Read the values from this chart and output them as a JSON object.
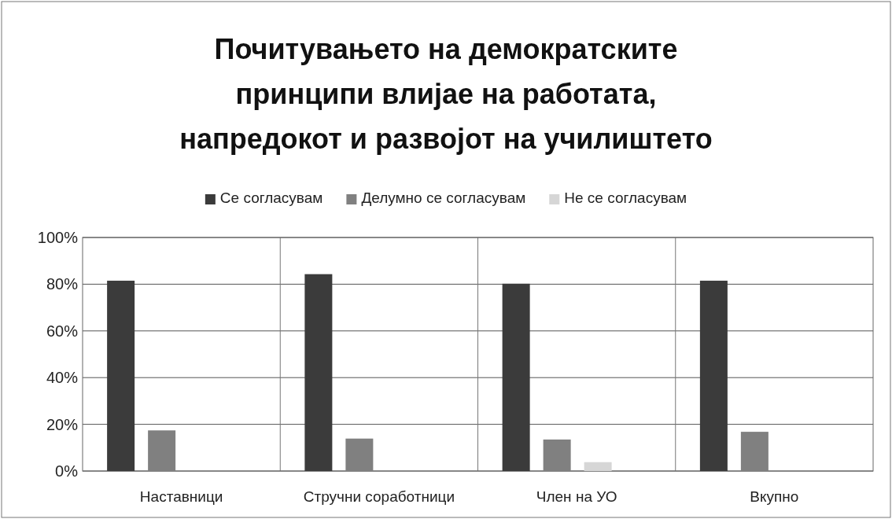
{
  "chart_data": {
    "type": "bar",
    "title": "Почитувањето на демократските принципи влијае на работата, напредокот и развојот на училиштето",
    "categories": [
      "Наставници",
      "Стручни соработници",
      "Член на УО",
      "Вкупно"
    ],
    "series": [
      {
        "name": "Се согласувам",
        "color": "#3b3b3b",
        "values": [
          81.5,
          84.3,
          80.2,
          81.5
        ]
      },
      {
        "name": "Делумно се согласувам",
        "color": "#808080",
        "values": [
          17.4,
          13.9,
          13.5,
          16.8
        ]
      },
      {
        "name": "Не се согласувам",
        "color": "#d6d6d6",
        "values": [
          0,
          0,
          3.8,
          0
        ]
      }
    ],
    "ylim": [
      0,
      100
    ],
    "yticks": [
      {
        "value": 0,
        "label": "0%"
      },
      {
        "value": 20,
        "label": "20%"
      },
      {
        "value": 40,
        "label": "40%"
      },
      {
        "value": 60,
        "label": "60%"
      },
      {
        "value": 80,
        "label": "80%"
      },
      {
        "value": 100,
        "label": "100%"
      }
    ],
    "grid": true,
    "legend": "top"
  }
}
